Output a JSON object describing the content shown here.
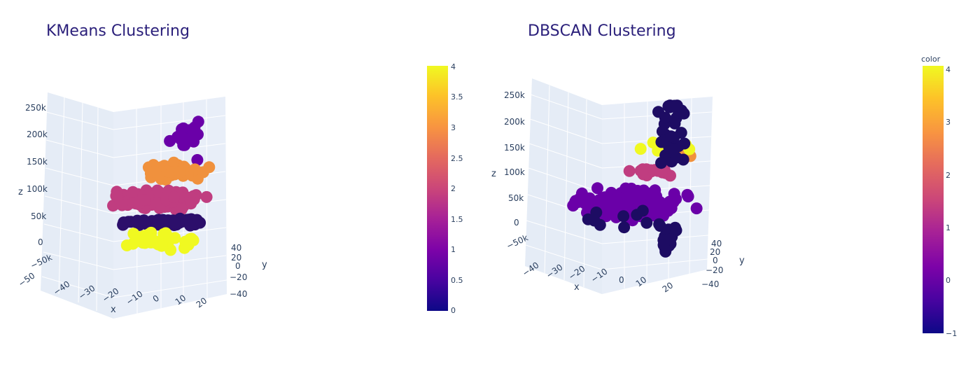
{
  "chart_data": [
    {
      "type": "scatter3d",
      "title": "KMeans Clustering",
      "axes": {
        "x": {
          "label": "x",
          "ticks": [
            "−50",
            "−40",
            "−30",
            "−20",
            "−10",
            "0",
            "10",
            "20"
          ]
        },
        "y": {
          "label": "y",
          "ticks": [
            "40",
            "20",
            "0",
            "−20",
            "−40"
          ]
        },
        "z": {
          "label": "z",
          "ticks": [
            "250k",
            "200k",
            "150k",
            "100k",
            "50k",
            "0",
            "−50k"
          ]
        }
      },
      "colorbar": {
        "title": "",
        "ticks": [
          "4",
          "3.5",
          "3",
          "2.5",
          "2",
          "1.5",
          "1",
          "0.5",
          "0"
        ],
        "range": [
          0,
          4
        ]
      },
      "clusters": [
        {
          "value": 1,
          "color": "#6a00a8",
          "n": 18
        },
        {
          "value": 3,
          "color": "#f0913d",
          "n": 55
        },
        {
          "value": 2,
          "color": "#c03d80",
          "n": 120
        },
        {
          "value": 0,
          "color": "#2c0f6b",
          "n": 70
        },
        {
          "value": 4,
          "color": "#f0f921",
          "n": 40
        }
      ]
    },
    {
      "type": "scatter3d",
      "title": "DBSCAN Clustering",
      "axes": {
        "x": {
          "label": "x",
          "ticks": [
            "−40",
            "−30",
            "−20",
            "−10",
            "0",
            "10",
            "20"
          ]
        },
        "y": {
          "label": "y",
          "ticks": [
            "40",
            "20",
            "0",
            "−20",
            "−40"
          ]
        },
        "z": {
          "label": "z",
          "ticks": [
            "250k",
            "200k",
            "150k",
            "100k",
            "50k",
            "0",
            "−50k"
          ]
        }
      },
      "colorbar": {
        "title": "color",
        "ticks": [
          "4",
          "3",
          "2",
          "1",
          "0",
          "−1"
        ],
        "range": [
          -1,
          4
        ]
      },
      "clusters": [
        {
          "value": 0,
          "color": "#6a00a8",
          "n": 260
        },
        {
          "value": 1,
          "color": "#c03d80",
          "n": 20
        },
        {
          "value": 2,
          "color": "#f0913d",
          "n": 10
        },
        {
          "value": 4,
          "color": "#f0f921",
          "n": 10
        },
        {
          "value": -1,
          "color": "#1d0c63",
          "n": 60
        }
      ]
    }
  ]
}
